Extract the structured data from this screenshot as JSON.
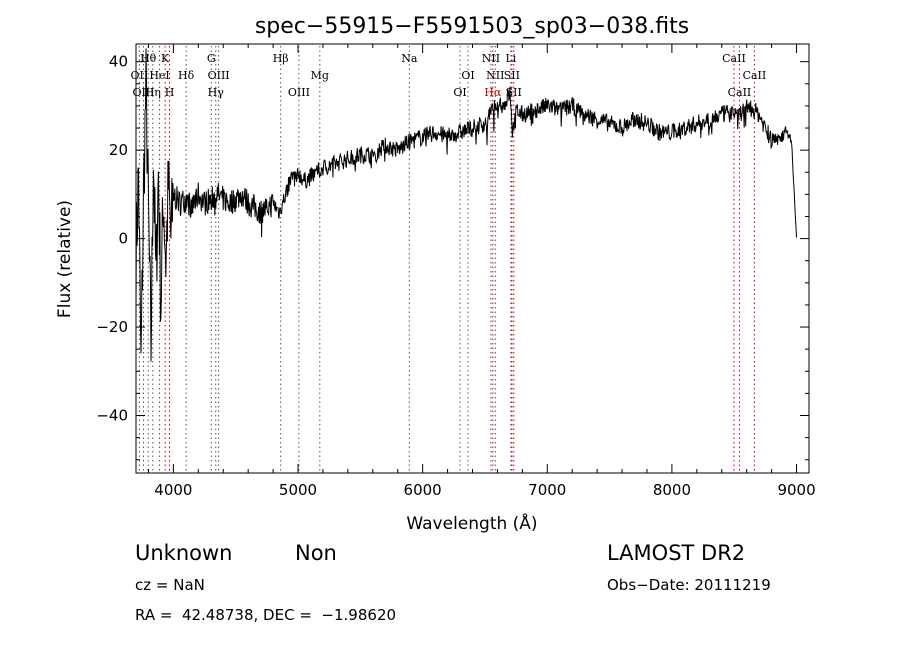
{
  "chart_data": {
    "type": "line",
    "title": "spec−55915−F5591503_sp03−038.fits",
    "xlabel": "Wavelength (Å)",
    "ylabel": "Flux (relative)",
    "xlim": [
      3700,
      9100
    ],
    "ylim": [
      -53,
      44
    ],
    "xticks": [
      4000,
      5000,
      6000,
      7000,
      8000,
      9000
    ],
    "yticks": [
      -40,
      -20,
      0,
      20,
      40
    ],
    "series": [
      {
        "x": [
          3700,
          3720,
          3740,
          3760,
          3780,
          3800,
          3820,
          3840,
          3860,
          3880,
          3900,
          3920,
          3940,
          3960,
          3980,
          4000,
          4050,
          4100,
          4150,
          4200,
          4250,
          4300,
          4350,
          4400,
          4450,
          4500,
          4550,
          4600,
          4650,
          4700,
          4750,
          4800,
          4850,
          4900,
          4950,
          5000,
          5050,
          5100,
          5150,
          5200,
          5300,
          5400,
          5500,
          5600,
          5700,
          5800,
          5900,
          6000,
          6100,
          6200,
          6300,
          6400,
          6500,
          6560,
          6600,
          6650,
          6700,
          6720,
          6750,
          6800,
          6900,
          7000,
          7100,
          7200,
          7300,
          7400,
          7500,
          7600,
          7700,
          7800,
          7900,
          8000,
          8100,
          8200,
          8300,
          8400,
          8500,
          8540,
          8600,
          8660,
          8700,
          8800,
          8900,
          8960,
          9000
        ],
        "y": [
          -5,
          15,
          -30,
          10,
          35,
          5,
          -25,
          20,
          -10,
          15,
          -15,
          10,
          -5,
          12,
          0,
          10,
          8,
          9,
          7,
          10,
          8,
          9,
          10,
          9,
          8,
          9,
          10,
          8,
          7,
          6,
          7,
          8,
          6,
          10,
          14,
          15,
          13,
          14,
          15,
          16,
          17,
          18,
          19,
          19,
          21,
          20,
          22,
          23,
          24,
          23,
          24,
          25,
          26,
          29,
          31,
          30,
          33,
          24,
          29,
          28,
          29,
          30,
          29,
          30,
          28,
          27,
          26,
          25,
          27,
          26,
          24,
          24,
          25,
          26,
          27,
          28,
          29,
          28,
          30,
          29,
          28,
          22,
          24,
          22,
          0
        ]
      }
    ],
    "line_markers": [
      {
        "label": "Hθ",
        "x": 3798,
        "row": 1,
        "color": "#000000"
      },
      {
        "label": "OII",
        "x": 3727,
        "row": 2,
        "color": "#000000"
      },
      {
        "label": "OIII",
        "x": 3760,
        "row": 3,
        "color": "#000000"
      },
      {
        "label": "Hη",
        "x": 3835,
        "row": 3,
        "color": "#000000"
      },
      {
        "label": "HeI",
        "x": 3889,
        "row": 2,
        "color": "#000000"
      },
      {
        "label": "K",
        "x": 3934,
        "row": 1,
        "color": "#000000"
      },
      {
        "label": "H",
        "x": 3969,
        "row": 3,
        "color": "#000000"
      },
      {
        "label": "Hδ",
        "x": 4102,
        "row": 2,
        "color": "#000000"
      },
      {
        "label": "G",
        "x": 4304,
        "row": 1,
        "color": "#000000"
      },
      {
        "label": "OIII",
        "x": 4363,
        "row": 2,
        "color": "#000000"
      },
      {
        "label": "Hγ",
        "x": 4340,
        "row": 3,
        "color": "#000000"
      },
      {
        "label": "Hβ",
        "x": 4861,
        "row": 1,
        "color": "#000000"
      },
      {
        "label": "OIII",
        "x": 5007,
        "row": 3,
        "color": "#000000"
      },
      {
        "label": "Mg",
        "x": 5175,
        "row": 2,
        "color": "#000000"
      },
      {
        "label": "Na",
        "x": 5893,
        "row": 1,
        "color": "#000000"
      },
      {
        "label": "OI",
        "x": 6364,
        "row": 2,
        "color": "#000000"
      },
      {
        "label": "OI",
        "x": 6300,
        "row": 3,
        "color": "#000000"
      },
      {
        "label": "NII",
        "x": 6548,
        "row": 1,
        "color": "#000000"
      },
      {
        "label": "NII",
        "x": 6583,
        "row": 2,
        "color": "#000000"
      },
      {
        "label": "Hα",
        "x": 6563,
        "row": 3,
        "color": "#cc0000"
      },
      {
        "label": "Li",
        "x": 6708,
        "row": 1,
        "color": "#000000"
      },
      {
        "label": "SII",
        "x": 6716,
        "row": 2,
        "color": "#000000"
      },
      {
        "label": "SII",
        "x": 6731,
        "row": 3,
        "color": "#000000"
      },
      {
        "label": "CaII",
        "x": 8498,
        "row": 1,
        "color": "#000000"
      },
      {
        "label": "CaII",
        "x": 8662,
        "row": 2,
        "color": "#000000"
      },
      {
        "label": "CaII",
        "x": 8542,
        "row": 3,
        "color": "#000000"
      }
    ],
    "red_lines": [
      3934,
      3969,
      6563,
      6716,
      6731,
      8498,
      8542,
      8662
    ]
  },
  "footer": {
    "class_label": "Unknown",
    "subclass_label": "Non",
    "survey": "LAMOST DR2",
    "cz": "cz = NaN",
    "obs_date": "Obs−Date: 20111219",
    "coords": "RA =  42.48738, DEC =  −1.98620"
  }
}
